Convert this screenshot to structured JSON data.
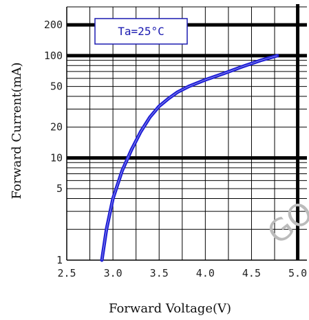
{
  "chart_data": {
    "type": "line",
    "title": "",
    "xlabel": "Forward Voltage(V)",
    "ylabel": "Forward Current(mA)",
    "x_scale": "linear",
    "y_scale": "log",
    "xlim": [
      2.5,
      5.1
    ],
    "ylim": [
      1,
      300
    ],
    "x_ticks": [
      "2.5",
      "3.0",
      "3.5",
      "4.0",
      "4.5",
      "5.0"
    ],
    "y_ticks": [
      "1",
      "5",
      "10",
      "20",
      "50",
      "100",
      "200"
    ],
    "grid": true,
    "annotation": "Ta=25°C",
    "watermark": "GO",
    "series": [
      {
        "color": "#1f1fd6",
        "points": [
          [
            2.88,
            1
          ],
          [
            2.93,
            2
          ],
          [
            3.0,
            4
          ],
          [
            3.1,
            7.5
          ],
          [
            3.2,
            12
          ],
          [
            3.3,
            18
          ],
          [
            3.4,
            25
          ],
          [
            3.5,
            32
          ],
          [
            3.6,
            38
          ],
          [
            3.7,
            44
          ],
          [
            3.82,
            50
          ],
          [
            4.0,
            58
          ],
          [
            4.2,
            67
          ],
          [
            4.4,
            78
          ],
          [
            4.6,
            90
          ],
          [
            4.78,
            100
          ]
        ]
      }
    ]
  }
}
